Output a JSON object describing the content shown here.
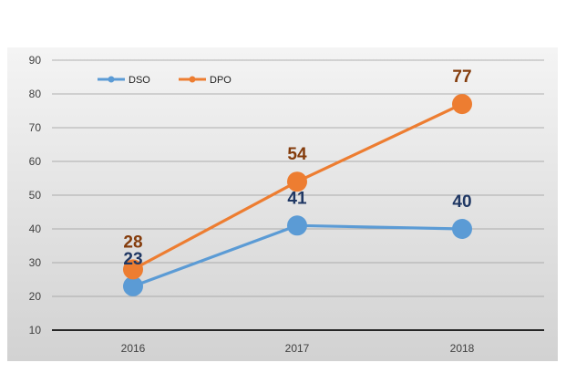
{
  "chart_data": {
    "type": "line",
    "title": "",
    "xlabel": "",
    "ylabel": "",
    "categories": [
      "2016",
      "2017",
      "2018"
    ],
    "ylim": [
      10,
      90
    ],
    "yticks": [
      10,
      20,
      30,
      40,
      50,
      60,
      70,
      80,
      90
    ],
    "grid": true,
    "legend_position": "top-left",
    "series": [
      {
        "name": "DSO",
        "values": [
          23,
          41,
          40
        ],
        "color": "#5b9bd5",
        "label_color": "#203864",
        "labels": [
          "23",
          "41",
          "40"
        ]
      },
      {
        "name": "DPO",
        "values": [
          28,
          54,
          77
        ],
        "color": "#ed7d31",
        "label_color": "#843c0c",
        "labels": [
          "28",
          "54",
          "77"
        ]
      }
    ]
  }
}
